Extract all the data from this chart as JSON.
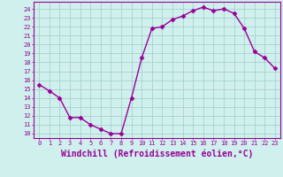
{
  "x": [
    0,
    1,
    2,
    3,
    4,
    5,
    6,
    7,
    8,
    9,
    10,
    11,
    12,
    13,
    14,
    15,
    16,
    17,
    18,
    19,
    20,
    21,
    22,
    23
  ],
  "y": [
    15.5,
    14.8,
    14.0,
    11.8,
    11.8,
    11.0,
    10.5,
    10.0,
    10.0,
    14.0,
    18.5,
    21.8,
    22.0,
    22.8,
    23.2,
    23.8,
    24.2,
    23.8,
    24.0,
    23.5,
    21.8,
    19.2,
    18.5,
    17.3
  ],
  "line_color": "#990099",
  "marker": "D",
  "markersize": 2.5,
  "linewidth": 1.0,
  "xlabel": "Windchill (Refroidissement éolien,°C)",
  "xlabel_fontsize": 7,
  "ylabel_ticks": [
    10,
    11,
    12,
    13,
    14,
    15,
    16,
    17,
    18,
    19,
    20,
    21,
    22,
    23,
    24
  ],
  "ylim": [
    9.5,
    24.8
  ],
  "xlim": [
    -0.5,
    23.5
  ],
  "xticks": [
    0,
    1,
    2,
    3,
    4,
    5,
    6,
    7,
    8,
    9,
    10,
    11,
    12,
    13,
    14,
    15,
    16,
    17,
    18,
    19,
    20,
    21,
    22,
    23
  ],
  "background_color": "#cff0ec",
  "grid_color": "#a0cccc",
  "tick_color": "#990099",
  "tick_label_color": "#990099",
  "spine_color": "#990099"
}
